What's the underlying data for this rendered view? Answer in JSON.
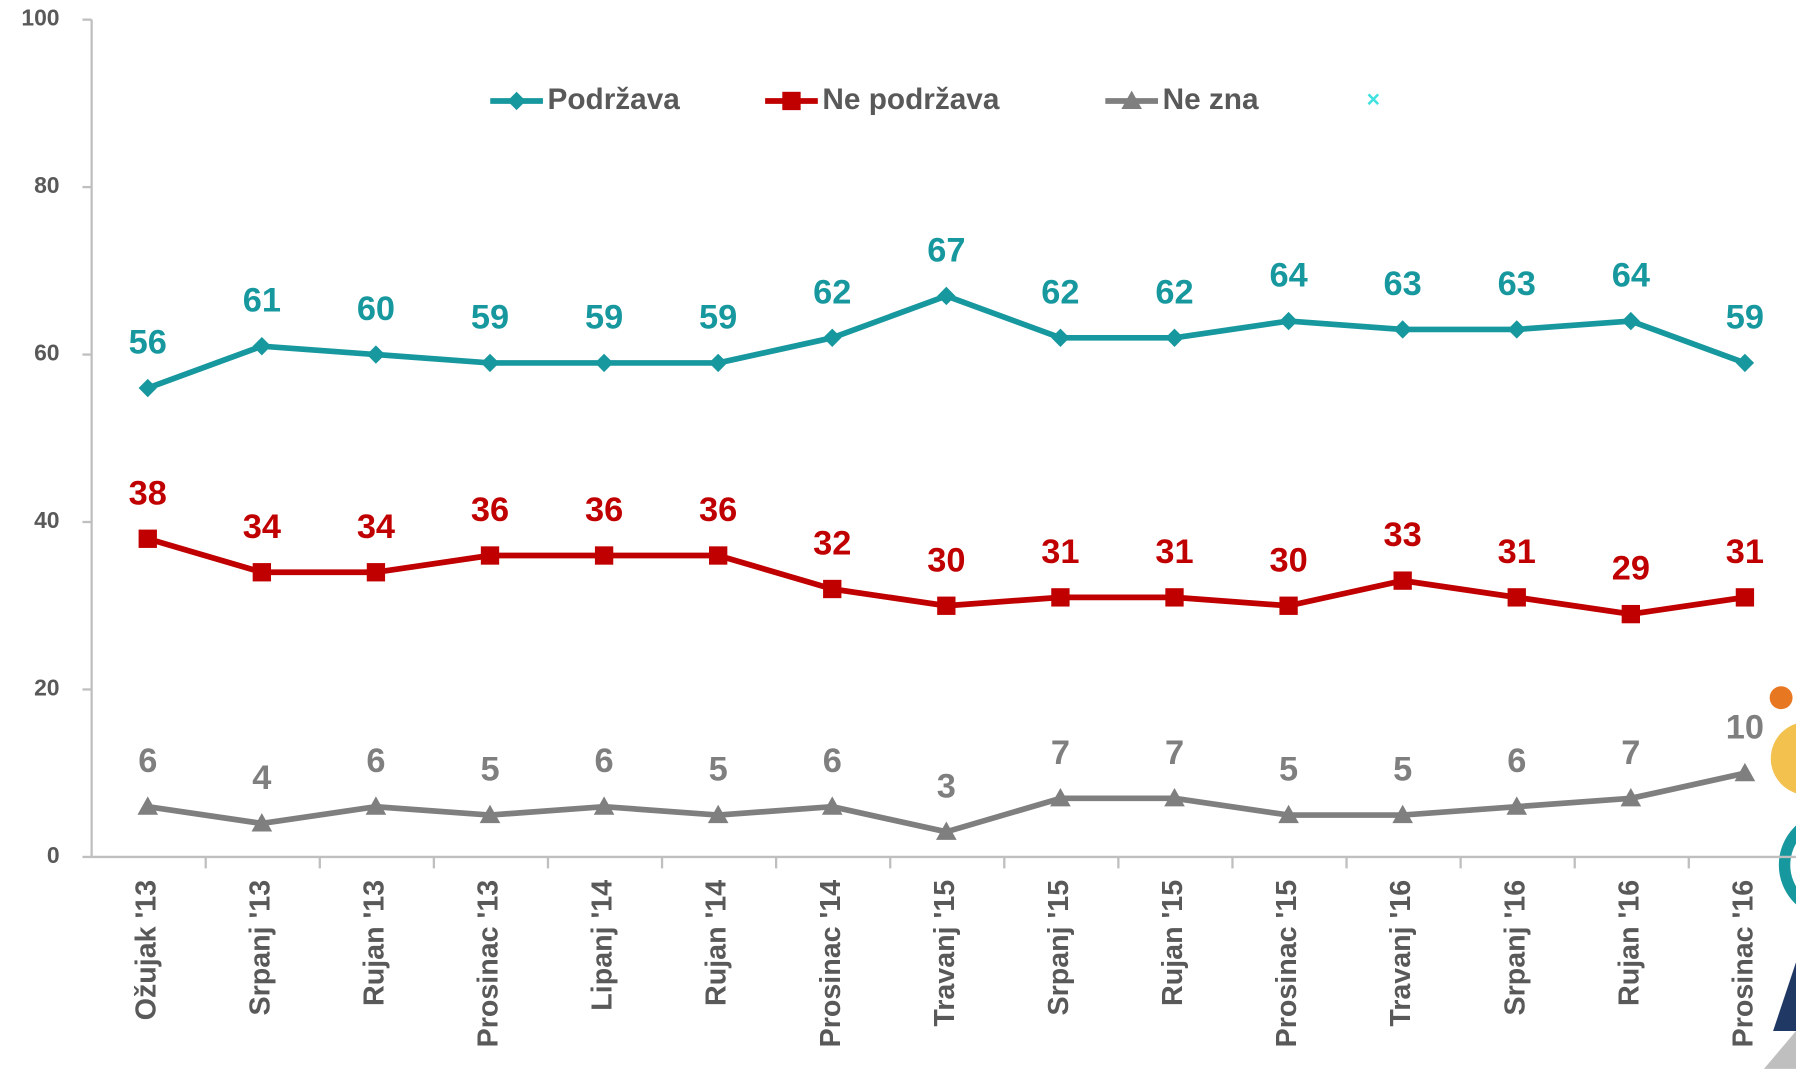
{
  "chart_data": {
    "type": "line",
    "categories": [
      "Ožujak '13",
      "Srpanj '13",
      "Rujan '13",
      "Prosinac '13",
      "Lipanj '14",
      "Rujan '14",
      "Prosinac '14",
      "Travanj '15",
      "Srpanj '15",
      "Rujan '15",
      "Prosinac '15",
      "Travanj '16",
      "Srpanj '16",
      "Rujan '16",
      "Prosinac '16"
    ],
    "series": [
      {
        "name": "Podržava",
        "color": "#17989e",
        "marker": "diamond",
        "values": [
          56,
          61,
          60,
          59,
          59,
          59,
          62,
          67,
          62,
          62,
          64,
          63,
          63,
          64,
          59
        ]
      },
      {
        "name": "Ne podržava",
        "color": "#c00000",
        "marker": "square",
        "values": [
          38,
          34,
          34,
          36,
          36,
          36,
          32,
          30,
          31,
          31,
          30,
          33,
          31,
          29,
          31
        ]
      },
      {
        "name": "Ne zna",
        "color": "#7f7f7f",
        "marker": "triangle",
        "values": [
          6,
          4,
          6,
          5,
          6,
          5,
          6,
          3,
          7,
          7,
          5,
          5,
          6,
          7,
          10
        ]
      }
    ],
    "ylim": [
      0,
      100
    ],
    "yticks": [
      0,
      20,
      40,
      60,
      80,
      100
    ],
    "grid": false,
    "legend": "top"
  }
}
